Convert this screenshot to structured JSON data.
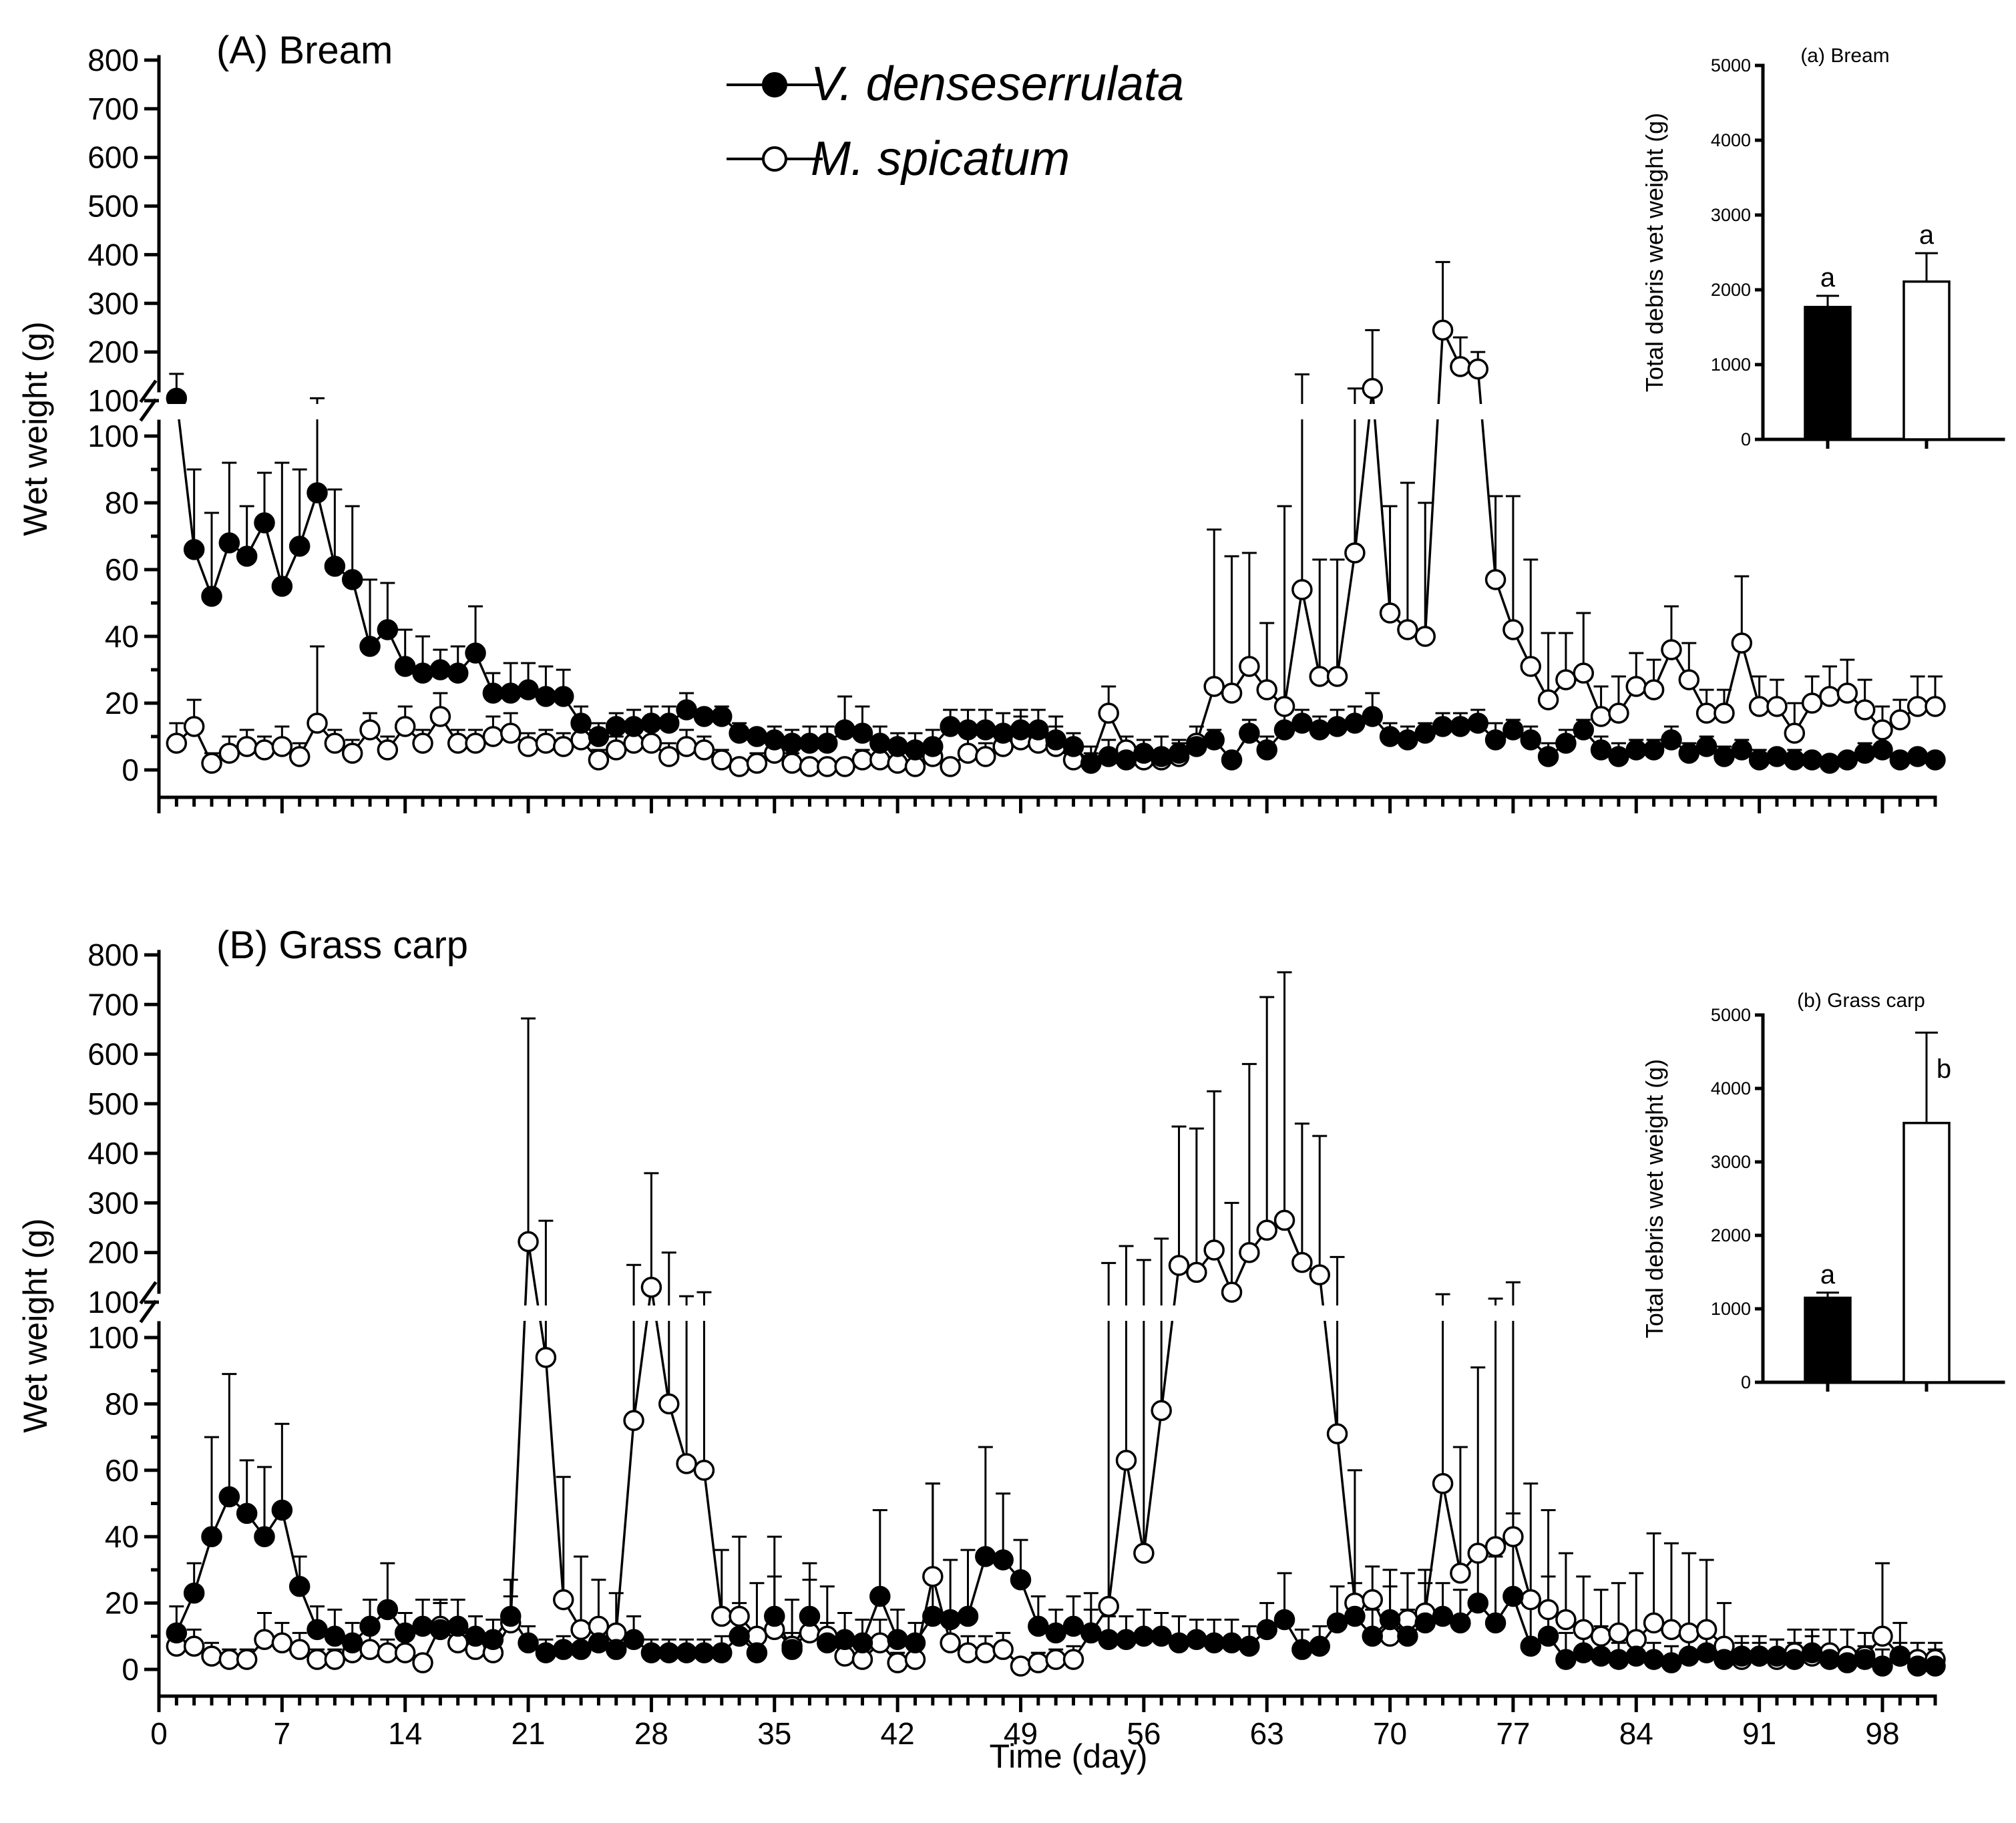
{
  "legend": {
    "series_v": "V. denseserrulata",
    "series_m": "M. spicatum"
  },
  "xlabel": "Time (day)",
  "ylabel": "Wet weight (g)",
  "x_ticks": [
    "0",
    "7",
    "14",
    "21",
    "28",
    "35",
    "42",
    "49",
    "56",
    "63",
    "70",
    "77",
    "84",
    "91",
    "98"
  ],
  "y_upper_ticks": [
    "800",
    "700",
    "600",
    "500",
    "400",
    "300",
    "200",
    "100"
  ],
  "y_lower_ticks": [
    "100",
    "80",
    "60",
    "40",
    "20",
    "0"
  ],
  "colors": {
    "filled": "#000000",
    "open": "#ffffff",
    "line": "#000000"
  },
  "chart_data": [
    {
      "type": "line",
      "panel": "A",
      "title": "(A) Bream",
      "xlim": [
        0,
        101
      ],
      "ylim_lower": [
        0,
        100
      ],
      "ylim_upper": [
        100,
        800
      ],
      "series": [
        {
          "name": "V. denseserrulata",
          "marker": "filled",
          "values": [
            105,
            66,
            52,
            68,
            64,
            74,
            55,
            67,
            83,
            61,
            57,
            37,
            42,
            31,
            29,
            30,
            29,
            35,
            23,
            23,
            24,
            22,
            22,
            14,
            10,
            13,
            13,
            14,
            14,
            18,
            16,
            16,
            11,
            10,
            9,
            8,
            8,
            8,
            12,
            11,
            8,
            7,
            6,
            7,
            13,
            12,
            12,
            11,
            12,
            12,
            9,
            7,
            2,
            4,
            3,
            5,
            4,
            5,
            7,
            9,
            3,
            11,
            6,
            12,
            14,
            12,
            13,
            14,
            16,
            10,
            9,
            11,
            13,
            13,
            14,
            9,
            12,
            9,
            4,
            8,
            12,
            6,
            4,
            6,
            6,
            9,
            5,
            7,
            4,
            6,
            3,
            4,
            3,
            3,
            2,
            3,
            5,
            6,
            3,
            4,
            3
          ],
          "errors": [
            50,
            24,
            25,
            24,
            15,
            15,
            37,
            23,
            22,
            23,
            22,
            20,
            14,
            11,
            11,
            6,
            8,
            14,
            6,
            9,
            8,
            9,
            8,
            5,
            4,
            4,
            5,
            5,
            5,
            5,
            2,
            3,
            3,
            2,
            4,
            4,
            5,
            5,
            10,
            8,
            5,
            4,
            5,
            5,
            5,
            6,
            6,
            6,
            6,
            6,
            7,
            4,
            5,
            5,
            4,
            4,
            6,
            4,
            3,
            3,
            2,
            4,
            4,
            5,
            4,
            4,
            5,
            5,
            7,
            4,
            4,
            3,
            4,
            4,
            4,
            5,
            3,
            4,
            4,
            4,
            3,
            4,
            4,
            3,
            3,
            4,
            3,
            3,
            3,
            3,
            3,
            2,
            3,
            2,
            2,
            2,
            3,
            2,
            2,
            2,
            2
          ]
        },
        {
          "name": "M. spicatum",
          "marker": "open",
          "values": [
            8,
            13,
            2,
            5,
            7,
            6,
            7,
            4,
            14,
            8,
            5,
            12,
            6,
            13,
            8,
            16,
            8,
            8,
            10,
            11,
            7,
            8,
            7,
            9,
            3,
            6,
            8,
            8,
            4,
            7,
            6,
            3,
            1,
            2,
            5,
            2,
            1,
            1,
            1,
            3,
            3,
            2,
            1,
            4,
            1,
            5,
            4,
            7,
            9,
            8,
            7,
            3,
            2,
            17,
            6,
            3,
            3,
            4,
            8,
            25,
            23,
            31,
            24,
            19,
            54,
            28,
            28,
            65,
            125,
            47,
            42,
            40,
            245,
            170,
            165,
            57,
            42,
            31,
            21,
            27,
            29,
            16,
            17,
            25,
            24,
            36,
            27,
            17,
            17,
            38,
            19,
            19,
            11,
            20,
            22,
            23,
            18,
            12,
            15,
            19,
            19
          ],
          "errors": [
            6,
            8,
            3,
            5,
            5,
            4,
            6,
            4,
            23,
            4,
            4,
            5,
            4,
            6,
            4,
            7,
            4,
            4,
            6,
            6,
            4,
            4,
            4,
            5,
            3,
            4,
            5,
            4,
            4,
            5,
            4,
            3,
            2,
            3,
            4,
            3,
            2,
            2,
            2,
            3,
            3,
            3,
            2,
            4,
            2,
            5,
            4,
            6,
            7,
            6,
            6,
            4,
            3,
            8,
            4,
            3,
            3,
            4,
            5,
            47,
            41,
            34,
            20,
            60,
            100,
            35,
            35,
            60,
            120,
            32,
            44,
            40,
            140,
            60,
            35,
            25,
            40,
            32,
            20,
            14,
            18,
            9,
            11,
            10,
            9,
            13,
            11,
            7,
            7,
            20,
            9,
            8,
            9,
            8,
            9,
            10,
            9,
            7,
            6,
            9,
            9
          ]
        }
      ]
    },
    {
      "type": "line",
      "panel": "B",
      "title": "(B) Grass carp",
      "xlim": [
        0,
        101
      ],
      "ylim_lower": [
        0,
        100
      ],
      "ylim_upper": [
        100,
        800
      ],
      "series": [
        {
          "name": "V. denseserrulata",
          "marker": "filled",
          "values": [
            11,
            23,
            40,
            52,
            47,
            40,
            48,
            25,
            12,
            10,
            8,
            13,
            18,
            11,
            13,
            12,
            13,
            10,
            9,
            16,
            8,
            5,
            6,
            6,
            8,
            6,
            9,
            5,
            5,
            5,
            5,
            5,
            10,
            5,
            16,
            6,
            16,
            8,
            9,
            8,
            22,
            9,
            8,
            16,
            15,
            16,
            34,
            33,
            27,
            13,
            11,
            13,
            11,
            9,
            9,
            10,
            10,
            8,
            9,
            8,
            8,
            7,
            12,
            15,
            6,
            7,
            14,
            16,
            10,
            15,
            10,
            14,
            16,
            14,
            20,
            14,
            22,
            7,
            10,
            3,
            5,
            4,
            3,
            4,
            3,
            2,
            4,
            5,
            3,
            4,
            4,
            4,
            3,
            5,
            3,
            2,
            3,
            1,
            4,
            1,
            1
          ],
          "errors": [
            8,
            9,
            30,
            37,
            16,
            21,
            26,
            9,
            7,
            8,
            6,
            8,
            14,
            6,
            8,
            8,
            8,
            6,
            6,
            11,
            5,
            4,
            4,
            5,
            6,
            5,
            7,
            4,
            4,
            4,
            4,
            5,
            10,
            4,
            24,
            5,
            16,
            6,
            8,
            7,
            26,
            9,
            6,
            40,
            18,
            20,
            33,
            20,
            12,
            9,
            7,
            9,
            7,
            7,
            7,
            8,
            7,
            8,
            6,
            7,
            7,
            6,
            8,
            14,
            6,
            6,
            11,
            10,
            8,
            10,
            8,
            12,
            10,
            10,
            15,
            20,
            25,
            15,
            18,
            8,
            8,
            9,
            5,
            7,
            5,
            5,
            7,
            8,
            5,
            6,
            4,
            5,
            5,
            5,
            4,
            3,
            4,
            5,
            4,
            4,
            5
          ],
          "errors_note": "one standard error above each mean"
        },
        {
          "name": "M. spicatum",
          "marker": "open",
          "values": [
            7,
            7,
            4,
            3,
            3,
            9,
            8,
            6,
            3,
            3,
            5,
            6,
            5,
            5,
            2,
            13,
            8,
            6,
            5,
            14,
            222,
            94,
            21,
            12,
            13,
            11,
            75,
            130,
            80,
            62,
            60,
            16,
            16,
            10,
            12,
            7,
            11,
            10,
            4,
            3,
            8,
            2,
            3,
            28,
            8,
            5,
            5,
            6,
            1,
            2,
            3,
            3,
            11,
            19,
            63,
            35,
            78,
            174,
            160,
            205,
            120,
            200,
            245,
            265,
            180,
            155,
            71,
            20,
            21,
            10,
            15,
            17,
            56,
            29,
            35,
            37,
            40,
            21,
            18,
            15,
            12,
            10,
            11,
            9,
            14,
            12,
            11,
            12,
            7,
            3,
            4,
            3,
            5,
            4,
            5,
            4,
            4,
            10,
            4,
            3,
            3
          ],
          "errors": [
            5,
            5,
            4,
            3,
            3,
            8,
            6,
            5,
            3,
            3,
            4,
            5,
            4,
            4,
            2,
            8,
            5,
            4,
            4,
            8,
            450,
            170,
            37,
            22,
            14,
            12,
            100,
            230,
            120,
            50,
            60,
            20,
            24,
            16,
            16,
            14,
            16,
            15,
            5,
            5,
            7,
            3,
            4,
            28,
            7,
            5,
            5,
            5,
            2,
            3,
            3,
            4,
            12,
            160,
            150,
            150,
            150,
            280,
            290,
            320,
            180,
            380,
            470,
            500,
            280,
            280,
            120,
            40,
            10,
            20,
            14,
            13,
            60,
            38,
            56,
            70,
            100,
            35,
            30,
            20,
            16,
            14,
            15,
            20,
            27,
            26,
            24,
            21,
            13,
            5,
            6,
            6,
            7,
            8,
            7,
            8,
            7,
            22,
            10,
            5,
            5
          ]
        }
      ]
    }
  ],
  "insets": [
    {
      "label": "(a) Bream",
      "ylabel": "Total debris wet weight (g)",
      "ylim": [
        0,
        5000
      ],
      "ticks": [
        "0",
        "1000",
        "2000",
        "3000",
        "4000",
        "5000"
      ],
      "bars": [
        {
          "series": "V. denseserrulata",
          "value": 1770,
          "error": 150,
          "letter": "a"
        },
        {
          "series": "M. spicatum",
          "value": 2110,
          "error": 380,
          "letter": "a"
        }
      ]
    },
    {
      "label": "(b) Grass carp",
      "ylabel": "Total debris wet weight (g)",
      "ylim": [
        0,
        5000
      ],
      "ticks": [
        "0",
        "1000",
        "2000",
        "3000",
        "4000",
        "5000"
      ],
      "bars": [
        {
          "series": "V. denseserrulata",
          "value": 1150,
          "error": 70,
          "letter": "a"
        },
        {
          "series": "M. spicatum",
          "value": 3530,
          "error": 1230,
          "letter": "b"
        }
      ]
    }
  ]
}
